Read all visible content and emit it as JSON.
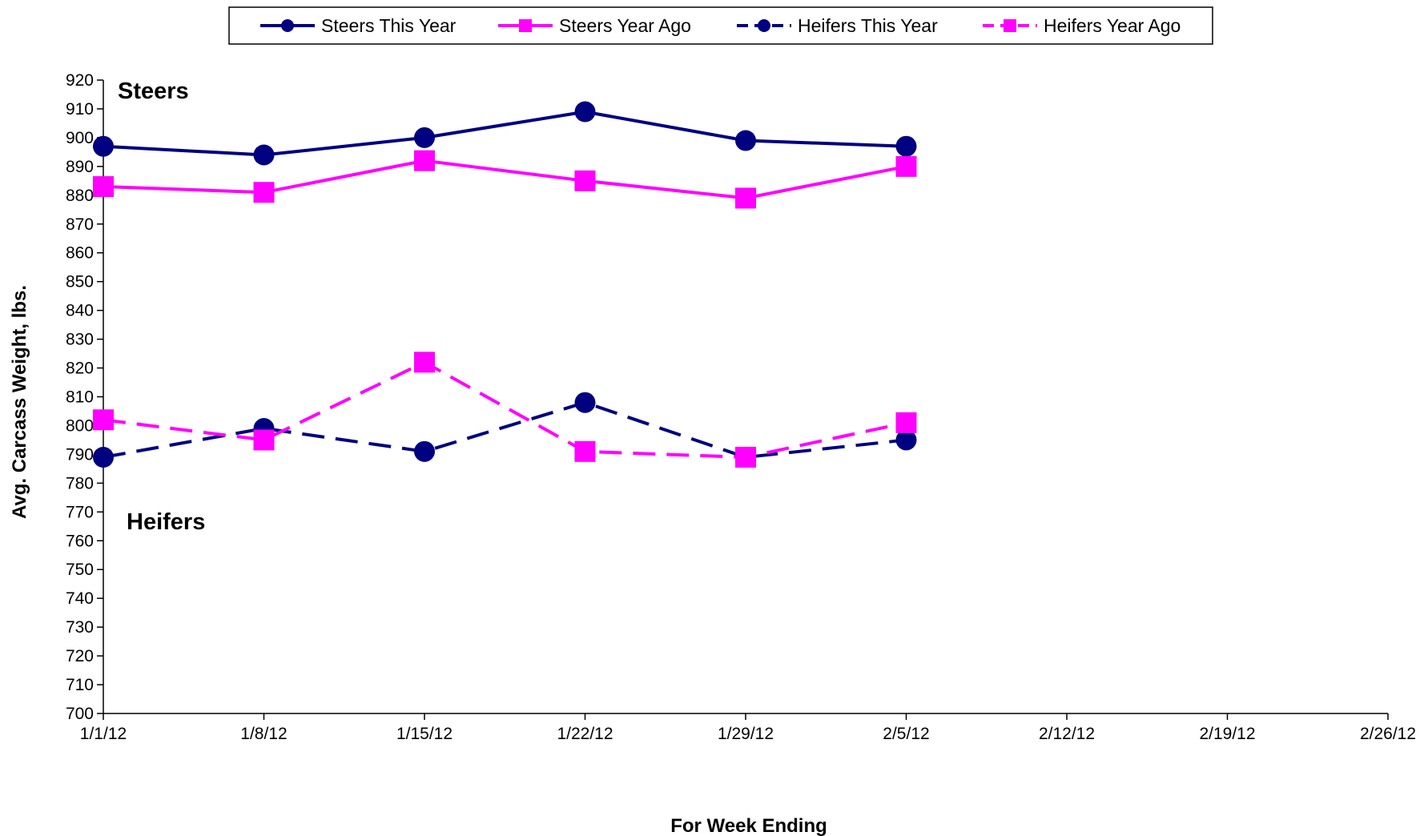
{
  "chart_data": {
    "type": "line",
    "title": "",
    "xlabel": "For Week Ending",
    "ylabel": "Avg. Carcass Weight, lbs.",
    "x_ticks": [
      "1/1/12",
      "1/8/12",
      "1/15/12",
      "1/22/12",
      "1/29/12",
      "2/5/12",
      "2/12/12",
      "2/19/12",
      "2/26/12"
    ],
    "ylim": [
      700,
      920
    ],
    "y_step": 10,
    "grid": false,
    "legend_position": "top",
    "annotations": [
      {
        "text": "Steers",
        "near": "top-left"
      },
      {
        "text": "Heifers",
        "near": "lower-left"
      }
    ],
    "series": [
      {
        "name": "Steers This Year",
        "color": "#000080",
        "marker": "circle",
        "line": "solid",
        "x": [
          "1/1/12",
          "1/8/12",
          "1/15/12",
          "1/22/12",
          "1/29/12",
          "2/5/12"
        ],
        "values": [
          897,
          894,
          900,
          909,
          899,
          897
        ]
      },
      {
        "name": "Steers Year Ago",
        "color": "#FF00FF",
        "marker": "square",
        "line": "solid",
        "x": [
          "1/1/12",
          "1/8/12",
          "1/15/12",
          "1/22/12",
          "1/29/12",
          "2/5/12"
        ],
        "values": [
          883,
          881,
          892,
          885,
          879,
          890
        ]
      },
      {
        "name": "Heifers This Year",
        "color": "#000080",
        "marker": "circle",
        "line": "dashed",
        "x": [
          "1/1/12",
          "1/8/12",
          "1/15/12",
          "1/22/12",
          "1/29/12",
          "2/5/12"
        ],
        "values": [
          789,
          799,
          791,
          808,
          789,
          795
        ]
      },
      {
        "name": "Heifers Year Ago",
        "color": "#FF00FF",
        "marker": "square",
        "line": "dashed",
        "x": [
          "1/1/12",
          "1/8/12",
          "1/15/12",
          "1/22/12",
          "1/29/12",
          "2/5/12"
        ],
        "values": [
          802,
          795,
          822,
          791,
          789,
          801
        ]
      }
    ]
  }
}
